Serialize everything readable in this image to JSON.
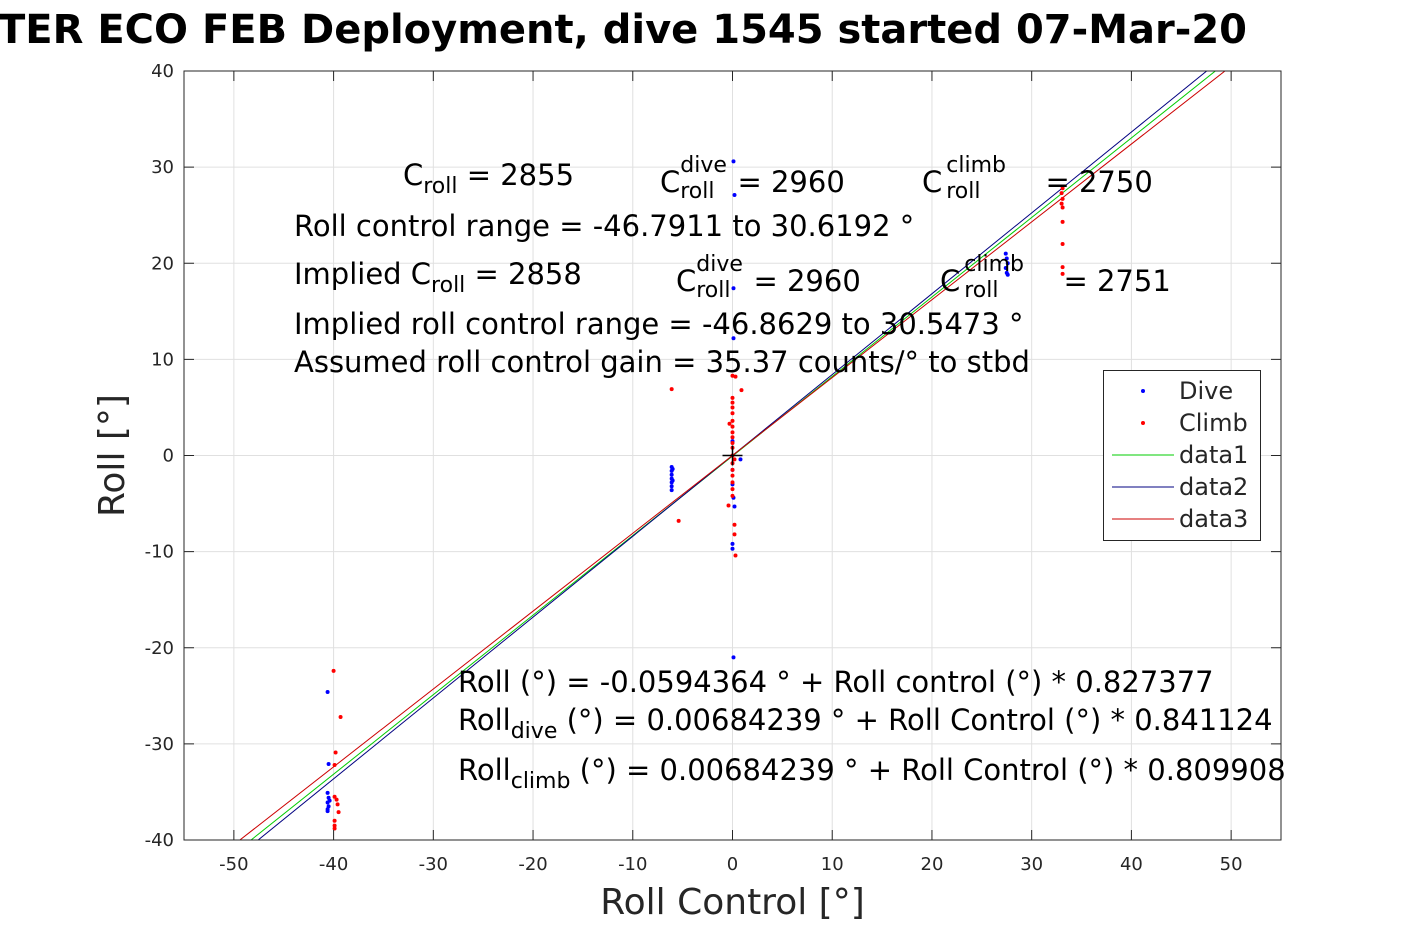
{
  "title": "TER ECO FEB Deployment, dive 1545 started 07-Mar-20",
  "annotations": {
    "c_roll_base": "C",
    "c_roll_sub": "roll",
    "c_roll_value": "= 2855",
    "c_dive_sup": "dive",
    "c_dive_sub": "roll",
    "c_dive_value": "= 2960",
    "c_climb_sup": "climb",
    "c_climb_sub": "roll",
    "c_climb_value": "= 2750",
    "range": "Roll control range = -46.7911 to 30.6192 °",
    "implied_prefix": "Implied C",
    "implied_sub": "roll",
    "implied_value": "= 2858",
    "implied_dive_value": "= 2960",
    "implied_climb_value": "= 2751",
    "implied_range": "Implied roll control range = -46.8629 to 30.5473 °",
    "gain": "Assumed roll control gain = 35.37 counts/° to stbd",
    "fit_all": "Roll (°) = -0.0594364 ° + Roll control (°) * 0.827377",
    "fit_dive_base": "Roll",
    "fit_dive_sub": "dive",
    "fit_dive_rest": " (°) = 0.00684239 ° + Roll Control (°) * 0.841124",
    "fit_climb_base": "Roll",
    "fit_climb_sub": "climb",
    "fit_climb_rest": " (°) = 0.00684239 ° + Roll Control (°) * 0.809908"
  },
  "chart_data": {
    "type": "scatter",
    "title": "TER ECO FEB Deployment, dive 1545 started 07-Mar-20",
    "xlabel": "Roll Control [°]",
    "ylabel": "Roll [°]",
    "xlim": [
      -55,
      55
    ],
    "ylim": [
      -40,
      40
    ],
    "xticks": [
      -50,
      -40,
      -30,
      -20,
      -10,
      0,
      10,
      20,
      30,
      40,
      50
    ],
    "yticks": [
      -40,
      -30,
      -20,
      -10,
      0,
      10,
      20,
      30,
      40
    ],
    "grid": true,
    "legend_position": "right",
    "colors": {
      "dive": "#0000ff",
      "climb": "#ff0000",
      "data1": "#00cc00",
      "data2": "#000080",
      "data3": "#cc0000"
    },
    "series": [
      {
        "name": "Dive",
        "kind": "points",
        "color": "#0000ff",
        "points": [
          [
            -40.6,
            -24.6
          ],
          [
            -40.5,
            -32.1
          ],
          [
            -40.6,
            -35.1
          ],
          [
            -40.5,
            -35.6
          ],
          [
            -40.6,
            -36.1
          ],
          [
            -40.5,
            -36.5
          ],
          [
            -40.6,
            -37.0
          ],
          [
            -40.4,
            -35.9
          ],
          [
            -40.6,
            -36.8
          ],
          [
            -6.1,
            -1.2
          ],
          [
            -6.1,
            -1.6
          ],
          [
            -6.1,
            -2.0
          ],
          [
            -6.1,
            -2.4
          ],
          [
            -6.1,
            -2.8
          ],
          [
            -6.1,
            -3.2
          ],
          [
            -6.1,
            -3.6
          ],
          [
            -6.0,
            -1.4
          ],
          [
            -6.0,
            -2.6
          ],
          [
            0.1,
            30.6
          ],
          [
            0.2,
            27.1
          ],
          [
            0.1,
            17.4
          ],
          [
            0.1,
            12.2
          ],
          [
            0.0,
            1.5
          ],
          [
            0.0,
            -1.5
          ],
          [
            0.0,
            -3.0
          ],
          [
            0.1,
            -4.4
          ],
          [
            0.2,
            -5.3
          ],
          [
            0.0,
            -9.7
          ],
          [
            0.0,
            -9.2
          ],
          [
            0.1,
            -21.0
          ],
          [
            0.8,
            -0.4
          ],
          [
            27.4,
            21.0
          ],
          [
            27.5,
            20.5
          ],
          [
            27.6,
            20.0
          ],
          [
            27.5,
            19.0
          ],
          [
            27.4,
            19.5
          ],
          [
            27.6,
            18.8
          ]
        ]
      },
      {
        "name": "Climb",
        "kind": "points",
        "color": "#ff0000",
        "points": [
          [
            -40.0,
            -22.4
          ],
          [
            -39.3,
            -27.2
          ],
          [
            -39.8,
            -30.9
          ],
          [
            -39.9,
            -32.2
          ],
          [
            -39.9,
            -35.5
          ],
          [
            -39.7,
            -35.8
          ],
          [
            -39.6,
            -36.3
          ],
          [
            -39.5,
            -37.1
          ],
          [
            -39.9,
            -38.0
          ],
          [
            -39.9,
            -38.5
          ],
          [
            -39.9,
            -38.8
          ],
          [
            -6.1,
            6.9
          ],
          [
            -5.4,
            -6.8
          ],
          [
            0.0,
            8.3
          ],
          [
            0.3,
            8.2
          ],
          [
            0.0,
            6.0
          ],
          [
            0.0,
            5.5
          ],
          [
            0.0,
            5.0
          ],
          [
            0.0,
            4.4
          ],
          [
            0.0,
            3.6
          ],
          [
            0.0,
            3.0
          ],
          [
            0.0,
            2.4
          ],
          [
            0.0,
            1.9
          ],
          [
            0.0,
            1.3
          ],
          [
            0.0,
            0.8
          ],
          [
            0.0,
            0.0
          ],
          [
            0.0,
            -0.8
          ],
          [
            0.0,
            -1.5
          ],
          [
            0.0,
            -2.1
          ],
          [
            0.0,
            -2.8
          ],
          [
            0.0,
            -3.5
          ],
          [
            0.0,
            -4.2
          ],
          [
            -0.4,
            -5.2
          ],
          [
            0.2,
            -7.2
          ],
          [
            0.2,
            -8.2
          ],
          [
            0.3,
            -10.4
          ],
          [
            -0.3,
            3.3
          ],
          [
            0.2,
            -0.4
          ],
          [
            0.9,
            6.8
          ],
          [
            33.1,
            27.8
          ],
          [
            33.0,
            27.3
          ],
          [
            33.1,
            26.7
          ],
          [
            33.0,
            26.2
          ],
          [
            33.1,
            25.8
          ],
          [
            33.1,
            24.3
          ],
          [
            33.1,
            22.0
          ],
          [
            33.1,
            19.6
          ],
          [
            33.1,
            18.9
          ]
        ]
      },
      {
        "name": "data1",
        "kind": "line",
        "color": "#00cc00",
        "slope": 0.827377,
        "intercept": -0.0594364
      },
      {
        "name": "data2",
        "kind": "line",
        "color": "#000080",
        "slope": 0.841124,
        "intercept": 0.00684239
      },
      {
        "name": "data3",
        "kind": "line",
        "color": "#cc0000",
        "slope": 0.809908,
        "intercept": 0.00684239
      }
    ],
    "marker": {
      "x": 0,
      "y": 0,
      "symbol": "+"
    }
  }
}
